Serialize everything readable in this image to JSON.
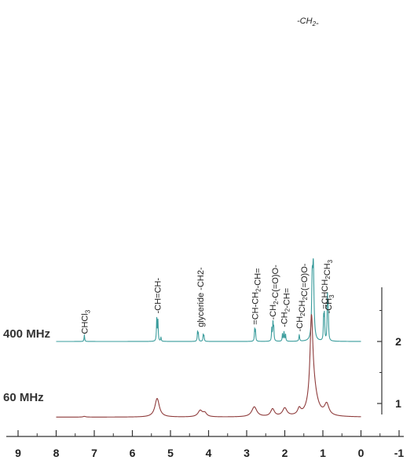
{
  "chart_data": {
    "type": "line",
    "title": "",
    "xlabel": "",
    "ylabel": "",
    "xlim": [
      9,
      -1
    ],
    "x_reversed": true,
    "x_ticks": [
      "9",
      "8",
      "7",
      "6",
      "5",
      "4",
      "3",
      "2",
      "1",
      "0",
      "-1"
    ],
    "y_ticks": [
      "1",
      "2"
    ],
    "colors": {
      "400 MHz": "#3a9c9c",
      "60 MHz": "#8e3b3b"
    },
    "series": [
      {
        "name": "400 MHz",
        "baseline": 2.0,
        "peaks": [
          {
            "x": 7.26,
            "h": 0.1,
            "w": 0.01
          },
          {
            "x": 5.36,
            "h": 0.36,
            "w": 0.01
          },
          {
            "x": 5.33,
            "h": 0.33,
            "w": 0.01
          },
          {
            "x": 5.25,
            "h": 0.06,
            "w": 0.01
          },
          {
            "x": 4.29,
            "h": 0.14,
            "w": 0.01
          },
          {
            "x": 4.27,
            "h": 0.12,
            "w": 0.01
          },
          {
            "x": 4.14,
            "h": 0.1,
            "w": 0.01
          },
          {
            "x": 4.12,
            "h": 0.08,
            "w": 0.01
          },
          {
            "x": 2.79,
            "h": 0.18,
            "w": 0.01
          },
          {
            "x": 2.77,
            "h": 0.16,
            "w": 0.01
          },
          {
            "x": 2.34,
            "h": 0.2,
            "w": 0.01
          },
          {
            "x": 2.31,
            "h": 0.28,
            "w": 0.01
          },
          {
            "x": 2.29,
            "h": 0.2,
            "w": 0.01
          },
          {
            "x": 2.06,
            "h": 0.12,
            "w": 0.01
          },
          {
            "x": 2.02,
            "h": 0.15,
            "w": 0.01
          },
          {
            "x": 1.98,
            "h": 0.11,
            "w": 0.01
          },
          {
            "x": 1.62,
            "h": 0.1,
            "w": 0.012
          },
          {
            "x": 1.28,
            "h": 0.85,
            "w": 0.018
          },
          {
            "x": 1.25,
            "h": 1.1,
            "w": 0.02
          },
          {
            "x": 0.98,
            "h": 0.35,
            "w": 0.01
          },
          {
            "x": 0.96,
            "h": 0.4,
            "w": 0.01
          },
          {
            "x": 0.88,
            "h": 0.68,
            "w": 0.01
          },
          {
            "x": 0.86,
            "h": 0.5,
            "w": 0.01
          }
        ]
      },
      {
        "name": "60 MHz",
        "baseline": 0.78,
        "peaks": [
          {
            "x": 7.26,
            "h": 0.012,
            "w": 0.04
          },
          {
            "x": 5.35,
            "h": 0.3,
            "w": 0.07
          },
          {
            "x": 4.22,
            "h": 0.1,
            "w": 0.07
          },
          {
            "x": 4.1,
            "h": 0.06,
            "w": 0.06
          },
          {
            "x": 2.8,
            "h": 0.16,
            "w": 0.08
          },
          {
            "x": 2.32,
            "h": 0.12,
            "w": 0.06
          },
          {
            "x": 2.0,
            "h": 0.13,
            "w": 0.07
          },
          {
            "x": 1.62,
            "h": 0.1,
            "w": 0.05
          },
          {
            "x": 1.3,
            "h": 1.3,
            "w": 0.045
          },
          {
            "x": 1.25,
            "h": 0.4,
            "w": 0.12
          },
          {
            "x": 0.9,
            "h": 0.18,
            "w": 0.07
          }
        ]
      }
    ],
    "peak_labels": [
      {
        "x": 7.26,
        "parts": [
          [
            "CHCl",
            ""
          ],
          [
            "3",
            "sub"
          ]
        ],
        "top": 2.12
      },
      {
        "x": 5.34,
        "parts": [
          [
            "-CH=CH-",
            ""
          ]
        ],
        "top": 2.45
      },
      {
        "x": 4.22,
        "parts": [
          [
            "glyceride -CH2-",
            ""
          ]
        ],
        "top": 2.23
      },
      {
        "x": 2.78,
        "parts": [
          [
            "=CH-CH",
            ""
          ],
          [
            "2",
            "sub"
          ],
          [
            "-CH=",
            ""
          ]
        ],
        "top": 2.27
      },
      {
        "x": 2.32,
        "parts": [
          [
            "-CH",
            ""
          ],
          [
            "2",
            "sub"
          ],
          [
            "-C(=O)O-",
            ""
          ]
        ],
        "top": 2.35
      },
      {
        "x": 2.02,
        "parts": [
          [
            "-CH",
            ""
          ],
          [
            "2",
            "sub"
          ],
          [
            "-CH=",
            ""
          ]
        ],
        "top": 2.23
      },
      {
        "x": 1.62,
        "parts": [
          [
            "-CH",
            ""
          ],
          [
            "2",
            "sub"
          ],
          [
            "CH",
            ""
          ],
          [
            "2",
            "sub"
          ],
          [
            "C(=O)O-",
            ""
          ]
        ],
        "top": 2.16
      },
      {
        "x": 0.96,
        "parts": [
          [
            "=CHCH",
            ""
          ],
          [
            "2",
            "sub"
          ],
          [
            "CH",
            ""
          ],
          [
            "3",
            "sub"
          ]
        ],
        "top": 2.52
      },
      {
        "x": 0.86,
        "parts": [
          [
            "-CH",
            ""
          ],
          [
            "3",
            "sub"
          ]
        ],
        "top": 2.45
      }
    ],
    "top_label": {
      "x": 1.68,
      "parts": [
        [
          "-CH",
          ""
        ],
        [
          "2",
          "sub"
        ],
        [
          "-",
          ""
        ]
      ]
    }
  }
}
